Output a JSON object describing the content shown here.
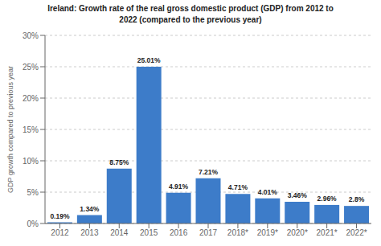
{
  "chart_data": {
    "type": "bar",
    "title": "Ireland: Growth rate of the real gross domestic product (GDP) from 2012 to\n2022 (compared to the previous year)",
    "ylabel": "GDP growth compared to previous year",
    "categories": [
      "2012",
      "2013",
      "2014",
      "2015",
      "2016",
      "2017",
      "2018*",
      "2019*",
      "2020*",
      "2021*",
      "2022*"
    ],
    "values": [
      0.19,
      1.34,
      8.75,
      25.01,
      4.91,
      7.21,
      4.71,
      4.01,
      3.46,
      2.96,
      2.8
    ],
    "value_labels": [
      "0.19%",
      "1.34%",
      "8.75%",
      "25.01%",
      "4.91%",
      "7.21%",
      "4.71%",
      "4.01%",
      "3.46%",
      "2.96%",
      "2.8%"
    ],
    "data_labels": true,
    "color": "#3d7cc9",
    "ylim": [
      0,
      30
    ],
    "yticks": [
      {
        "value": 0,
        "label": "0%"
      },
      {
        "value": 5,
        "label": "5%"
      },
      {
        "value": 10,
        "label": "10%"
      },
      {
        "value": 15,
        "label": "15%"
      },
      {
        "value": 20,
        "label": "20%"
      },
      {
        "value": 25,
        "label": "25%"
      },
      {
        "value": 30,
        "label": "30%"
      }
    ],
    "grid": true
  }
}
